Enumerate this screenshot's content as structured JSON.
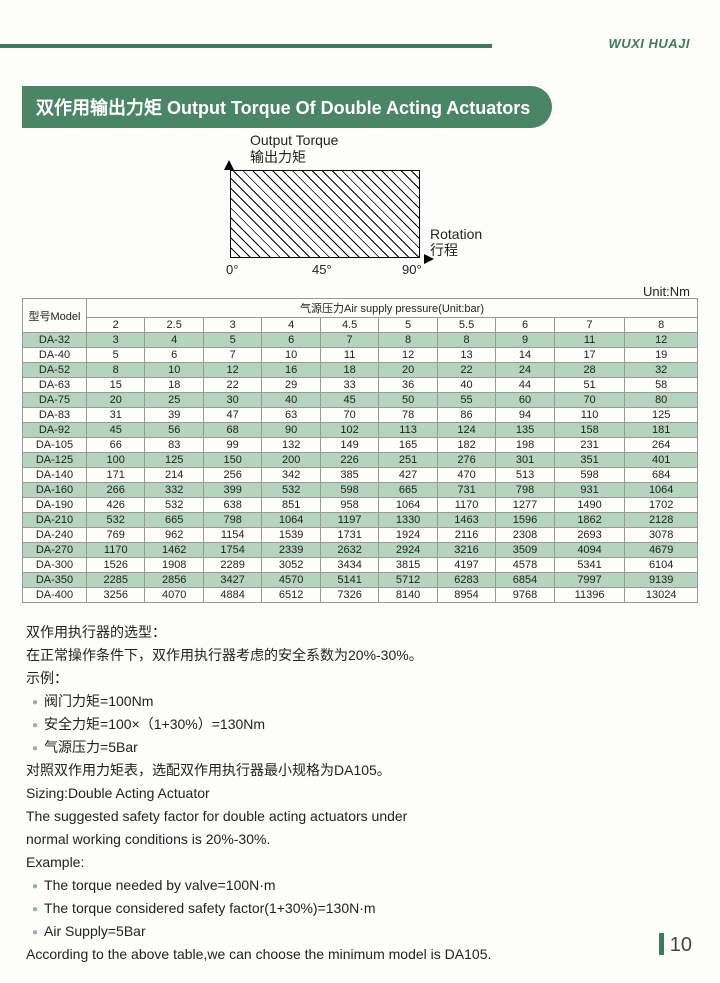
{
  "brand": "WUXI HUAJI",
  "title": "双作用输出力矩  Output Torque Of Double Acting Actuators",
  "chart": {
    "y_label_en": "Output Torque",
    "y_label_cn": "输出力矩",
    "x_label_en": "Rotation",
    "x_label_cn": "行程",
    "ticks": [
      "0°",
      "45°",
      "90°"
    ]
  },
  "unit": "Unit:Nm",
  "table": {
    "model_header": "型号Model",
    "pressure_header": "气源压力Air supply pressure(Unit:bar)",
    "columns": [
      "2",
      "2.5",
      "3",
      "4",
      "4.5",
      "5",
      "5.5",
      "6",
      "7",
      "8"
    ],
    "rows": [
      {
        "m": "DA-32",
        "v": [
          "3",
          "4",
          "5",
          "6",
          "7",
          "8",
          "8",
          "9",
          "11",
          "12"
        ],
        "alt": true
      },
      {
        "m": "DA-40",
        "v": [
          "5",
          "6",
          "7",
          "10",
          "11",
          "12",
          "13",
          "14",
          "17",
          "19"
        ],
        "alt": false
      },
      {
        "m": "DA-52",
        "v": [
          "8",
          "10",
          "12",
          "16",
          "18",
          "20",
          "22",
          "24",
          "28",
          "32"
        ],
        "alt": true
      },
      {
        "m": "DA-63",
        "v": [
          "15",
          "18",
          "22",
          "29",
          "33",
          "36",
          "40",
          "44",
          "51",
          "58"
        ],
        "alt": false
      },
      {
        "m": "DA-75",
        "v": [
          "20",
          "25",
          "30",
          "40",
          "45",
          "50",
          "55",
          "60",
          "70",
          "80"
        ],
        "alt": true
      },
      {
        "m": "DA-83",
        "v": [
          "31",
          "39",
          "47",
          "63",
          "70",
          "78",
          "86",
          "94",
          "110",
          "125"
        ],
        "alt": false
      },
      {
        "m": "DA-92",
        "v": [
          "45",
          "56",
          "68",
          "90",
          "102",
          "113",
          "124",
          "135",
          "158",
          "181"
        ],
        "alt": true
      },
      {
        "m": "DA-105",
        "v": [
          "66",
          "83",
          "99",
          "132",
          "149",
          "165",
          "182",
          "198",
          "231",
          "264"
        ],
        "alt": false
      },
      {
        "m": "DA-125",
        "v": [
          "100",
          "125",
          "150",
          "200",
          "226",
          "251",
          "276",
          "301",
          "351",
          "401"
        ],
        "alt": true
      },
      {
        "m": "DA-140",
        "v": [
          "171",
          "214",
          "256",
          "342",
          "385",
          "427",
          "470",
          "513",
          "598",
          "684"
        ],
        "alt": false
      },
      {
        "m": "DA-160",
        "v": [
          "266",
          "332",
          "399",
          "532",
          "598",
          "665",
          "731",
          "798",
          "931",
          "1064"
        ],
        "alt": true
      },
      {
        "m": "DA-190",
        "v": [
          "426",
          "532",
          "638",
          "851",
          "958",
          "1064",
          "1170",
          "1277",
          "1490",
          "1702"
        ],
        "alt": false
      },
      {
        "m": "DA-210",
        "v": [
          "532",
          "665",
          "798",
          "1064",
          "1197",
          "1330",
          "1463",
          "1596",
          "1862",
          "2128"
        ],
        "alt": true
      },
      {
        "m": "DA-240",
        "v": [
          "769",
          "962",
          "1154",
          "1539",
          "1731",
          "1924",
          "2116",
          "2308",
          "2693",
          "3078"
        ],
        "alt": false
      },
      {
        "m": "DA-270",
        "v": [
          "1170",
          "1462",
          "1754",
          "2339",
          "2632",
          "2924",
          "3216",
          "3509",
          "4094",
          "4679"
        ],
        "alt": true
      },
      {
        "m": "DA-300",
        "v": [
          "1526",
          "1908",
          "2289",
          "3052",
          "3434",
          "3815",
          "4197",
          "4578",
          "5341",
          "6104"
        ],
        "alt": false
      },
      {
        "m": "DA-350",
        "v": [
          "2285",
          "2856",
          "3427",
          "4570",
          "5141",
          "5712",
          "6283",
          "6854",
          "7997",
          "9139"
        ],
        "alt": true
      },
      {
        "m": "DA-400",
        "v": [
          "3256",
          "4070",
          "4884",
          "6512",
          "7326",
          "8140",
          "8954",
          "9768",
          "11396",
          "13024"
        ],
        "alt": false
      }
    ]
  },
  "notes": {
    "cn_h1": "双作用执行器的选型：",
    "cn_h2": "在正常操作条件下，双作用执行器考虑的安全系数为20%-30%。",
    "cn_ex": "示例：",
    "cn_b1": "阀门力矩=100Nm",
    "cn_b2": "安全力矩=100×（1+30%）=130Nm",
    "cn_b3": "气源压力=5Bar",
    "cn_concl": "对照双作用力矩表，选配双作用执行器最小规格为DA105。",
    "en_h1": "Sizing:Double Acting Actuator",
    "en_h2": "The suggested safety factor for double acting actuators under",
    "en_h3": "normal working conditions is 20%-30%.",
    "en_ex": "Example:",
    "en_b1": "The torque needed by valve=100N·m",
    "en_b2": "The torque considered safety factor(1+30%)=130N·m",
    "en_b3": "Air Supply=5Bar",
    "en_concl": "According to the above table,we can choose the minimum model is DA105."
  },
  "page": "10"
}
